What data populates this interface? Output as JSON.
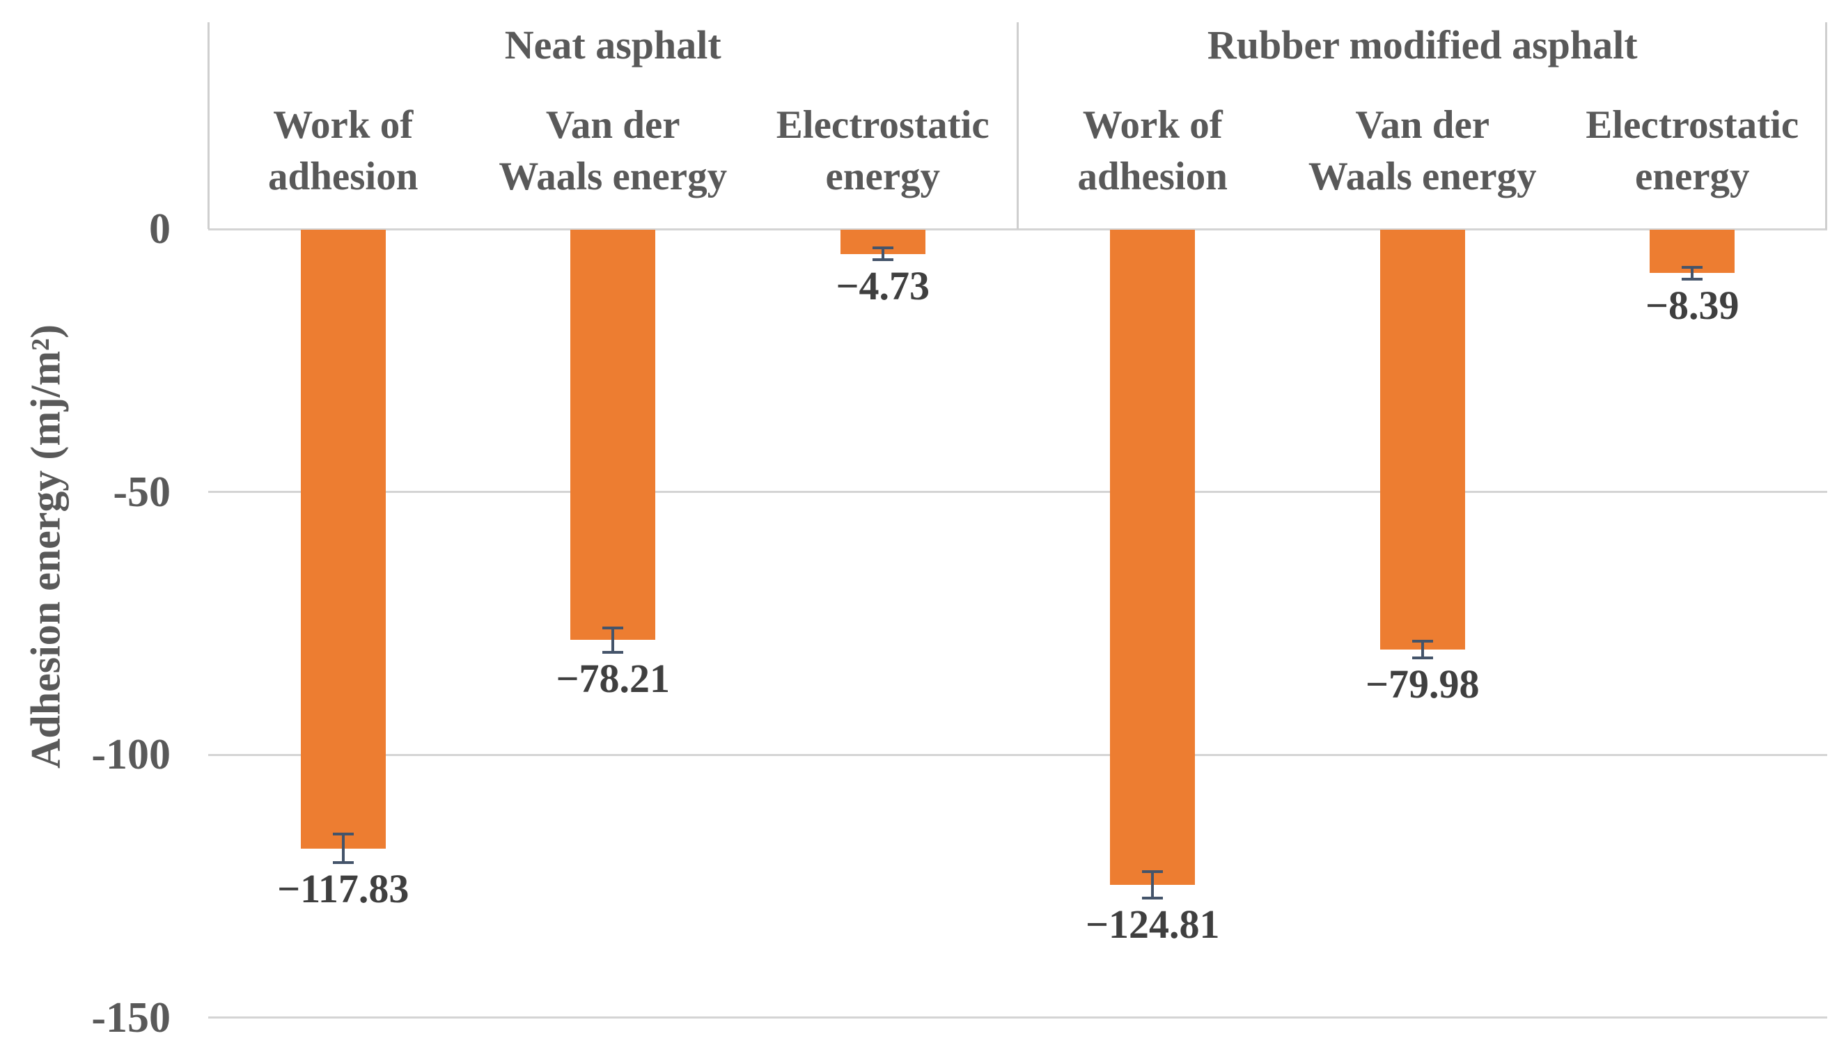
{
  "chart_data": {
    "type": "bar",
    "title": "",
    "ylabel": "Adhesion energy  (mj/m²)",
    "xlabel": "",
    "ylim": [
      -150,
      0
    ],
    "grid": "horizontal",
    "legend": "none",
    "orientation": "vertical-negative",
    "colors": {
      "bar": "#ED7D31",
      "error_bar": "#44546A",
      "text": "#595959",
      "gridline": "#D4D4D4"
    },
    "yticks": [
      {
        "value": 0,
        "label": "0"
      },
      {
        "value": -50,
        "label": "-50"
      },
      {
        "value": -100,
        "label": "-100"
      },
      {
        "value": -150,
        "label": "-150"
      }
    ],
    "groups": [
      {
        "label": "Neat asphalt",
        "bars": [
          {
            "category_lines": [
              "Work of",
              "adhesion"
            ],
            "value": -117.83,
            "error": 3.0,
            "value_label": "−117.83"
          },
          {
            "category_lines": [
              "Van der",
              "Waals energy"
            ],
            "value": -78.21,
            "error": 2.6,
            "value_label": "−78.21"
          },
          {
            "category_lines": [
              "Electrostatic",
              "energy"
            ],
            "value": -4.73,
            "error": 1.4,
            "value_label": "−4.73"
          }
        ]
      },
      {
        "label": "Rubber modified asphalt",
        "bars": [
          {
            "category_lines": [
              "Work of",
              "adhesion"
            ],
            "value": -124.81,
            "error": 2.8,
            "value_label": "−124.81"
          },
          {
            "category_lines": [
              "Van der",
              "Waals energy"
            ],
            "value": -79.98,
            "error": 1.9,
            "value_label": "−79.98"
          },
          {
            "category_lines": [
              "Electrostatic",
              "energy"
            ],
            "value": -8.39,
            "error": 1.4,
            "value_label": "−8.39"
          }
        ]
      }
    ]
  }
}
